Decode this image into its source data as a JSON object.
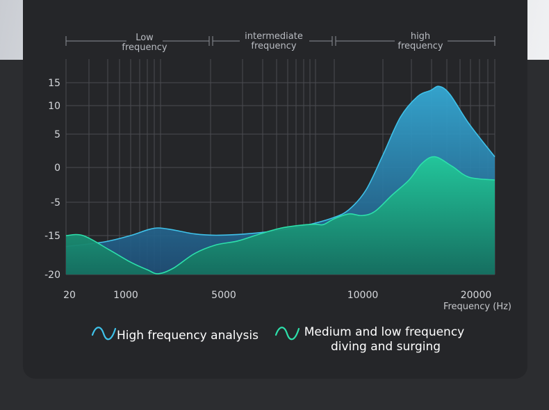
{
  "chart_data": {
    "type": "area",
    "title": "",
    "xlabel": "Frequency (Hz)",
    "ylabel": "",
    "x_tick_labels": [
      "20",
      "1000",
      "5000",
      "10000",
      "20000"
    ],
    "y_tick_labels": [
      "15",
      "10",
      "5",
      "0",
      "-5",
      "-15",
      "-20"
    ],
    "bands": [
      {
        "line1": "Low",
        "line2": "frequency"
      },
      {
        "line1": "intermediate",
        "line2": "frequency"
      },
      {
        "line1": "high",
        "line2": "frequency"
      }
    ],
    "series": [
      {
        "name": "High frequency analysis",
        "color": "#38b6dd",
        "points": [
          [
            0.0,
            -16.4
          ],
          [
            0.09,
            -15.8
          ],
          [
            0.15,
            -15.0
          ],
          [
            0.19,
            -13.3
          ],
          [
            0.215,
            -12.7
          ],
          [
            0.25,
            -13.3
          ],
          [
            0.3,
            -14.5
          ],
          [
            0.35,
            -14.9
          ],
          [
            0.42,
            -14.5
          ],
          [
            0.48,
            -13.7
          ],
          [
            0.55,
            -12.2
          ],
          [
            0.62,
            -9.8
          ],
          [
            0.66,
            -7.2
          ],
          [
            0.7,
            -3.2
          ],
          [
            0.74,
            2.0
          ],
          [
            0.78,
            8.0
          ],
          [
            0.82,
            12.0
          ],
          [
            0.85,
            13.3
          ],
          [
            0.87,
            14.2
          ],
          [
            0.895,
            12.5
          ],
          [
            0.94,
            6.8
          ],
          [
            1.0,
            1.6
          ]
        ]
      },
      {
        "name": "Medium and low frequency diving and surging",
        "color": "#22c99a",
        "points": [
          [
            0.0,
            -15.0
          ],
          [
            0.04,
            -15.0
          ],
          [
            0.1,
            -16.8
          ],
          [
            0.15,
            -18.4
          ],
          [
            0.19,
            -19.4
          ],
          [
            0.215,
            -19.9
          ],
          [
            0.25,
            -19.2
          ],
          [
            0.3,
            -17.3
          ],
          [
            0.35,
            -16.2
          ],
          [
            0.4,
            -15.7
          ],
          [
            0.45,
            -14.6
          ],
          [
            0.5,
            -12.8
          ],
          [
            0.54,
            -12.0
          ],
          [
            0.58,
            -11.6
          ],
          [
            0.6,
            -11.7
          ],
          [
            0.625,
            -10.0
          ],
          [
            0.66,
            -8.5
          ],
          [
            0.69,
            -9.0
          ],
          [
            0.72,
            -7.8
          ],
          [
            0.76,
            -4.0
          ],
          [
            0.8,
            -1.8
          ],
          [
            0.83,
            0.6
          ],
          [
            0.86,
            1.6
          ],
          [
            0.9,
            0.2
          ],
          [
            0.94,
            -1.4
          ],
          [
            1.0,
            -1.8
          ]
        ]
      }
    ],
    "legend": [
      {
        "label": "High frequency analysis"
      },
      {
        "line1": "Medium and low frequency",
        "line2": "diving and surging"
      }
    ]
  }
}
